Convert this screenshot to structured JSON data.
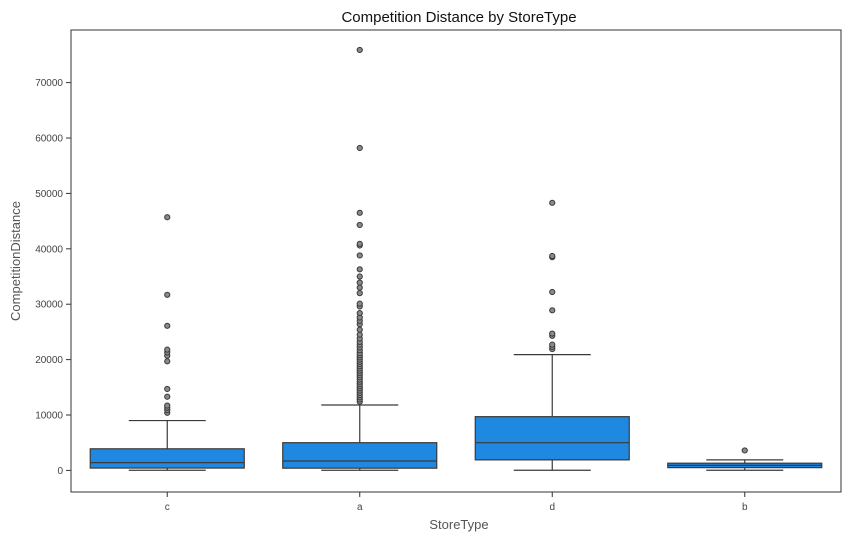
{
  "chart_data": {
    "type": "boxplot",
    "title": "Competition Distance by StoreType",
    "xlabel": "StoreType",
    "ylabel": "CompetitionDistance",
    "ylim": [
      -3900,
      79500
    ],
    "yticks": [
      0,
      10000,
      20000,
      30000,
      40000,
      50000,
      60000,
      70000
    ],
    "ytick_labels": [
      "0",
      "10000",
      "20000",
      "30000",
      "40000",
      "50000",
      "60000",
      "70000"
    ],
    "categories": [
      "c",
      "a",
      "d",
      "b"
    ],
    "box_color": "#1f88e0",
    "edge_color": "#3a3a3a",
    "grid": false,
    "boxes": [
      {
        "category": "c",
        "whisker_low": 30,
        "q1": 420,
        "median": 1400,
        "q3": 3900,
        "whisker_high": 9000,
        "outliers": [
          10400,
          10900,
          11300,
          11700,
          13300,
          14700,
          19700,
          20700,
          21300,
          21800,
          26100,
          31700,
          45700
        ]
      },
      {
        "category": "a",
        "whisker_low": 20,
        "q1": 400,
        "median": 1700,
        "q3": 5000,
        "whisker_high": 11800,
        "outliers": [
          12400,
          12800,
          13200,
          13600,
          14000,
          14400,
          14800,
          15200,
          15600,
          16000,
          16400,
          16800,
          17200,
          17600,
          18000,
          18400,
          18800,
          19200,
          19600,
          20000,
          20400,
          20800,
          21200,
          21700,
          22200,
          22700,
          23200,
          23800,
          24500,
          25400,
          26400,
          27000,
          27600,
          28400,
          29600,
          30100,
          32000,
          33000,
          33900,
          35000,
          36300,
          38800,
          40600,
          40900,
          44300,
          46500,
          58200,
          75900
        ]
      },
      {
        "category": "d",
        "whisker_low": 20,
        "q1": 1900,
        "median": 5000,
        "q3": 9700,
        "whisker_high": 20900,
        "outliers": [
          21900,
          22300,
          22700,
          24300,
          24700,
          28900,
          32200,
          38500,
          38700,
          48300
        ]
      },
      {
        "category": "b",
        "whisker_low": 30,
        "q1": 500,
        "median": 900,
        "q3": 1300,
        "whisker_high": 1900,
        "outliers": [
          3600
        ]
      }
    ]
  }
}
